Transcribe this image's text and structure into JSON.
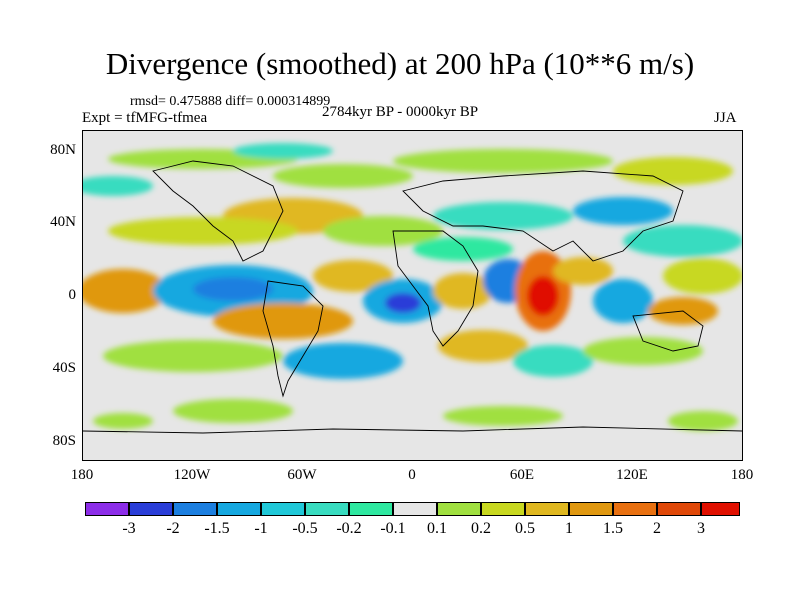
{
  "figure": {
    "title": "Divergence (smoothed) at 200 hPa (10**6 m/s)",
    "stats": "rmsd= 0.475888 diff= 0.000314899",
    "experiment": "Expt = tfMFG-tfmea",
    "period": "2784kyr BP - 0000kyr BP",
    "season": "JJA"
  },
  "axes": {
    "y_labels": [
      "80N",
      "40N",
      "0",
      "40S",
      "80S"
    ],
    "x_labels": [
      "180",
      "120W",
      "60W",
      "0",
      "60E",
      "120E",
      "180"
    ]
  },
  "colorbar": {
    "colors": [
      "#8c2de8",
      "#2a3ed8",
      "#1c7fe0",
      "#16a8e0",
      "#20c8d8",
      "#38dcc0",
      "#2ee8a0",
      "#e6e6e6",
      "#a0e040",
      "#c8d820",
      "#e0b820",
      "#e09810",
      "#e87010",
      "#e04808",
      "#e01000"
    ],
    "labels": [
      "-3",
      "-2",
      "-1.5",
      "-1",
      "-0.5",
      "-0.2",
      "-0.1",
      "0.1",
      "0.2",
      "0.5",
      "1",
      "1.5",
      "2",
      "3"
    ]
  }
}
